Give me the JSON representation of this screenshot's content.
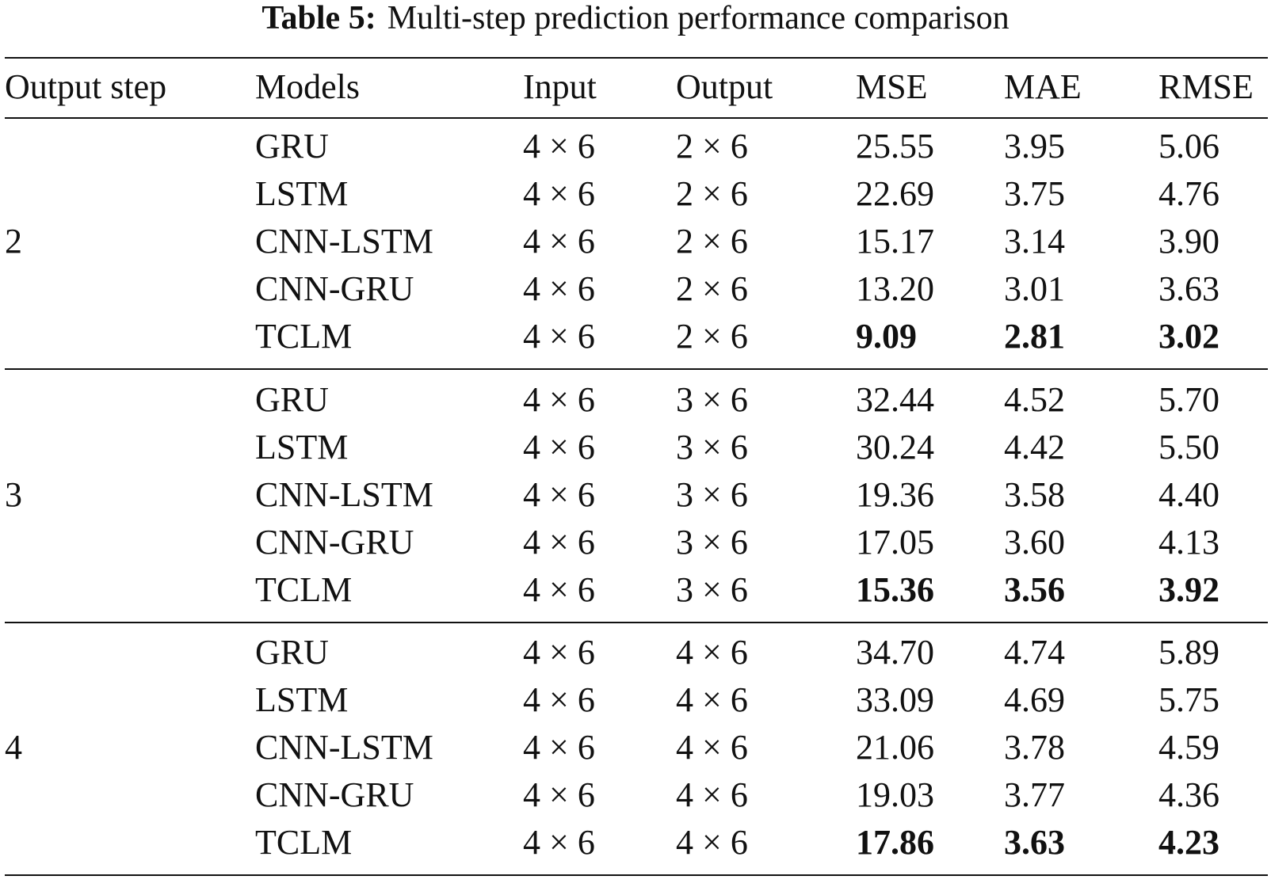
{
  "caption": {
    "label": "Table 5:",
    "text": "Multi-step prediction performance comparison"
  },
  "headers": {
    "step": "Output step",
    "model": "Models",
    "input": "Input",
    "output": "Output",
    "mse": "MSE",
    "mae": "MAE",
    "rmse": "RMSE"
  },
  "groups": [
    {
      "step": "2",
      "rows": [
        {
          "model": "GRU",
          "input": "4 × 6",
          "output": "2 × 6",
          "mse": "25.55",
          "mae": "3.95",
          "rmse": "5.06",
          "best": false
        },
        {
          "model": "LSTM",
          "input": "4 × 6",
          "output": "2 × 6",
          "mse": "22.69",
          "mae": "3.75",
          "rmse": "4.76",
          "best": false
        },
        {
          "model": "CNN-LSTM",
          "input": "4 × 6",
          "output": "2 × 6",
          "mse": "15.17",
          "mae": "3.14",
          "rmse": "3.90",
          "best": false
        },
        {
          "model": "CNN-GRU",
          "input": "4 × 6",
          "output": "2 × 6",
          "mse": "13.20",
          "mae": "3.01",
          "rmse": "3.63",
          "best": false
        },
        {
          "model": "TCLM",
          "input": "4 × 6",
          "output": "2 × 6",
          "mse": "9.09",
          "mae": "2.81",
          "rmse": "3.02",
          "best": true
        }
      ]
    },
    {
      "step": "3",
      "rows": [
        {
          "model": "GRU",
          "input": "4 × 6",
          "output": "3 × 6",
          "mse": "32.44",
          "mae": "4.52",
          "rmse": "5.70",
          "best": false
        },
        {
          "model": "LSTM",
          "input": "4 × 6",
          "output": "3 × 6",
          "mse": "30.24",
          "mae": "4.42",
          "rmse": "5.50",
          "best": false
        },
        {
          "model": "CNN-LSTM",
          "input": "4 × 6",
          "output": "3 × 6",
          "mse": "19.36",
          "mae": "3.58",
          "rmse": "4.40",
          "best": false
        },
        {
          "model": "CNN-GRU",
          "input": "4 × 6",
          "output": "3 × 6",
          "mse": "17.05",
          "mae": "3.60",
          "rmse": "4.13",
          "best": false
        },
        {
          "model": "TCLM",
          "input": "4 × 6",
          "output": "3 × 6",
          "mse": "15.36",
          "mae": "3.56",
          "rmse": "3.92",
          "best": true
        }
      ]
    },
    {
      "step": "4",
      "rows": [
        {
          "model": "GRU",
          "input": "4 × 6",
          "output": "4 × 6",
          "mse": "34.70",
          "mae": "4.74",
          "rmse": "5.89",
          "best": false
        },
        {
          "model": "LSTM",
          "input": "4 × 6",
          "output": "4 × 6",
          "mse": "33.09",
          "mae": "4.69",
          "rmse": "5.75",
          "best": false
        },
        {
          "model": "CNN-LSTM",
          "input": "4 × 6",
          "output": "4 × 6",
          "mse": "21.06",
          "mae": "3.78",
          "rmse": "4.59",
          "best": false
        },
        {
          "model": "CNN-GRU",
          "input": "4 × 6",
          "output": "4 × 6",
          "mse": "19.03",
          "mae": "3.77",
          "rmse": "4.36",
          "best": false
        },
        {
          "model": "TCLM",
          "input": "4 × 6",
          "output": "4 × 6",
          "mse": "17.86",
          "mae": "3.63",
          "rmse": "4.23",
          "best": true
        }
      ]
    }
  ]
}
